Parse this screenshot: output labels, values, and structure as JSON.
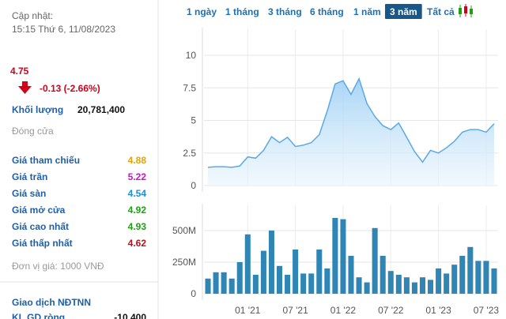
{
  "header": {
    "updated_label": "Cập nhật:",
    "updated_time": "15:15 Thứ 6, 11/08/2023"
  },
  "price": {
    "value": "4.75",
    "change": "-0.13 (-2.66%)",
    "color": "#d0021b"
  },
  "volume": {
    "label": "Khối lượng",
    "value": "20,781,400"
  },
  "status": "Đóng cửa",
  "stats": [
    {
      "label": "Giá tham chiếu",
      "value": "4.88",
      "color": "#e8a200"
    },
    {
      "label": "Giá trần",
      "value": "5.22",
      "color": "#c616c6"
    },
    {
      "label": "Giá sàn",
      "value": "4.54",
      "color": "#1a8fd6"
    },
    {
      "label": "Giá mở cửa",
      "value": "4.92",
      "color": "#19a30f"
    },
    {
      "label": "Giá cao nhất",
      "value": "4.93",
      "color": "#19a30f"
    },
    {
      "label": "Giá thấp nhất",
      "value": "4.62",
      "color": "#b0141e"
    }
  ],
  "unit_note": "Đơn vị giá: 1000 VNĐ",
  "foreign": {
    "title": "Giao dịch NĐTNN",
    "rows": [
      {
        "label": "KL GD ròng",
        "value": "-10,400"
      }
    ]
  },
  "tabs": {
    "items": [
      "1 ngày",
      "1 tháng",
      "3 tháng",
      "6 tháng",
      "1 năm",
      "3 năm",
      "Tất cả"
    ],
    "selected": 5
  },
  "chart_data": [
    {
      "type": "line",
      "color": "#5aa9e6",
      "values": [
        1.4,
        1.45,
        1.45,
        1.4,
        1.5,
        2.2,
        2.1,
        2.7,
        3.75,
        3.3,
        3.7,
        3.0,
        3.1,
        3.3,
        3.9,
        5.7,
        7.8,
        8.05,
        7.0,
        8.2,
        6.3,
        5.3,
        4.6,
        4.3,
        4.8,
        3.7,
        2.6,
        1.8,
        2.7,
        2.5,
        2.9,
        3.4,
        4.1,
        4.3,
        4.3,
        4.1,
        4.75
      ],
      "ylim": [
        0,
        12
      ],
      "yticks": [
        0,
        2.5,
        5,
        7.5,
        10
      ],
      "grid": true
    },
    {
      "type": "bar",
      "color": "#2f86b5",
      "categories": [
        null,
        null,
        null,
        null,
        null,
        "01 '21",
        null,
        null,
        null,
        null,
        null,
        "07 '21",
        null,
        null,
        null,
        null,
        null,
        "01 '22",
        null,
        null,
        null,
        null,
        null,
        "07 '22",
        null,
        null,
        null,
        null,
        null,
        "01 '23",
        null,
        null,
        null,
        null,
        null,
        "07 '23",
        null
      ],
      "values": [
        120000000,
        170000000,
        170000000,
        120000000,
        250000000,
        470000000,
        150000000,
        340000000,
        500000000,
        220000000,
        150000000,
        350000000,
        160000000,
        160000000,
        350000000,
        200000000,
        600000000,
        590000000,
        300000000,
        130000000,
        90000000,
        520000000,
        300000000,
        180000000,
        150000000,
        130000000,
        90000000,
        130000000,
        110000000,
        200000000,
        160000000,
        230000000,
        300000000,
        370000000,
        260000000,
        260000000,
        200000000
      ],
      "ylim": [
        0,
        700000000
      ],
      "yticks": [
        0,
        {
          "value": 250000000,
          "label": "250M"
        },
        {
          "value": 500000000,
          "label": "500M"
        }
      ],
      "grid": true
    }
  ]
}
